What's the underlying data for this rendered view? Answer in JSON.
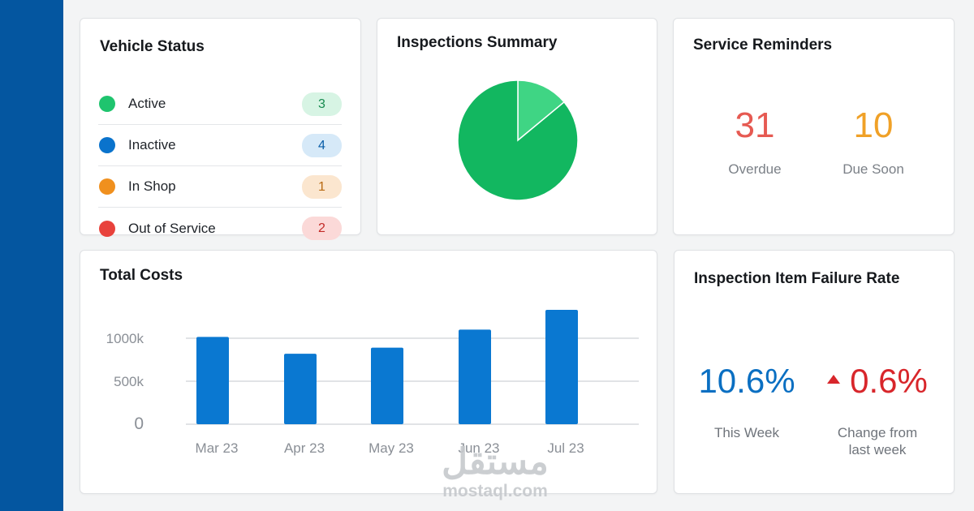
{
  "vehicle_status": {
    "title": "Vehicle Status",
    "items": [
      {
        "label": "Active",
        "count": "3",
        "dot_color": "#1fc46e",
        "badge_bg": "#d7f4e4",
        "badge_fg": "#178a4f",
        "dot_icon": "green-status-dot-icon"
      },
      {
        "label": "Inactive",
        "count": "4",
        "dot_color": "#0a73cc",
        "badge_bg": "#d6e9f8",
        "badge_fg": "#0a5ea8",
        "dot_icon": "blue-status-dot-icon"
      },
      {
        "label": "In Shop",
        "count": "1",
        "dot_color": "#f0901e",
        "badge_bg": "#fbe6cf",
        "badge_fg": "#b86a12",
        "dot_icon": "orange-status-dot-icon"
      },
      {
        "label": "Out of Service",
        "count": "2",
        "dot_color": "#e8423c",
        "badge_bg": "#fbd9d8",
        "badge_fg": "#c22a26",
        "dot_icon": "red-status-dot-icon"
      }
    ]
  },
  "inspections_summary": {
    "title": "Inspections Summary",
    "slices": [
      {
        "fraction": 0.14,
        "color": "#3fd584"
      },
      {
        "fraction": 0.86,
        "color": "#12b760"
      }
    ]
  },
  "service_reminders": {
    "title": "Service Reminders",
    "overdue": {
      "value": "31",
      "label": "Overdue",
      "color": "#e65a52"
    },
    "due_soon": {
      "value": "10",
      "label": "Due Soon",
      "color": "#f0a127"
    }
  },
  "total_costs": {
    "title": "Total Costs"
  },
  "chart_data": {
    "type": "bar",
    "title": "Total Costs",
    "categories": [
      "Mar 23",
      "Apr 23",
      "May 23",
      "Jun 23",
      "Jul 23"
    ],
    "values": [
      1015,
      820,
      890,
      1100,
      1330
    ],
    "y_ticks": [
      {
        "value": 0,
        "label": "0"
      },
      {
        "value": 500,
        "label": "500k"
      },
      {
        "value": 1000,
        "label": "1000k"
      }
    ],
    "ylim": [
      0,
      1400
    ],
    "bar_color": "#0a78d1",
    "grid": true
  },
  "failure_rate": {
    "title": "Inspection Item Failure Rate",
    "this_week": {
      "value": "10.6%",
      "label": "This Week",
      "color": "#0a6fc2"
    },
    "change": {
      "value": "0.6%",
      "label_line1": "Change from",
      "label_line2": "last week",
      "color": "#d8262b",
      "icon": "up-triangle-icon"
    }
  },
  "watermark": {
    "arabic": "مستقل",
    "latin": "mostaql.com"
  }
}
